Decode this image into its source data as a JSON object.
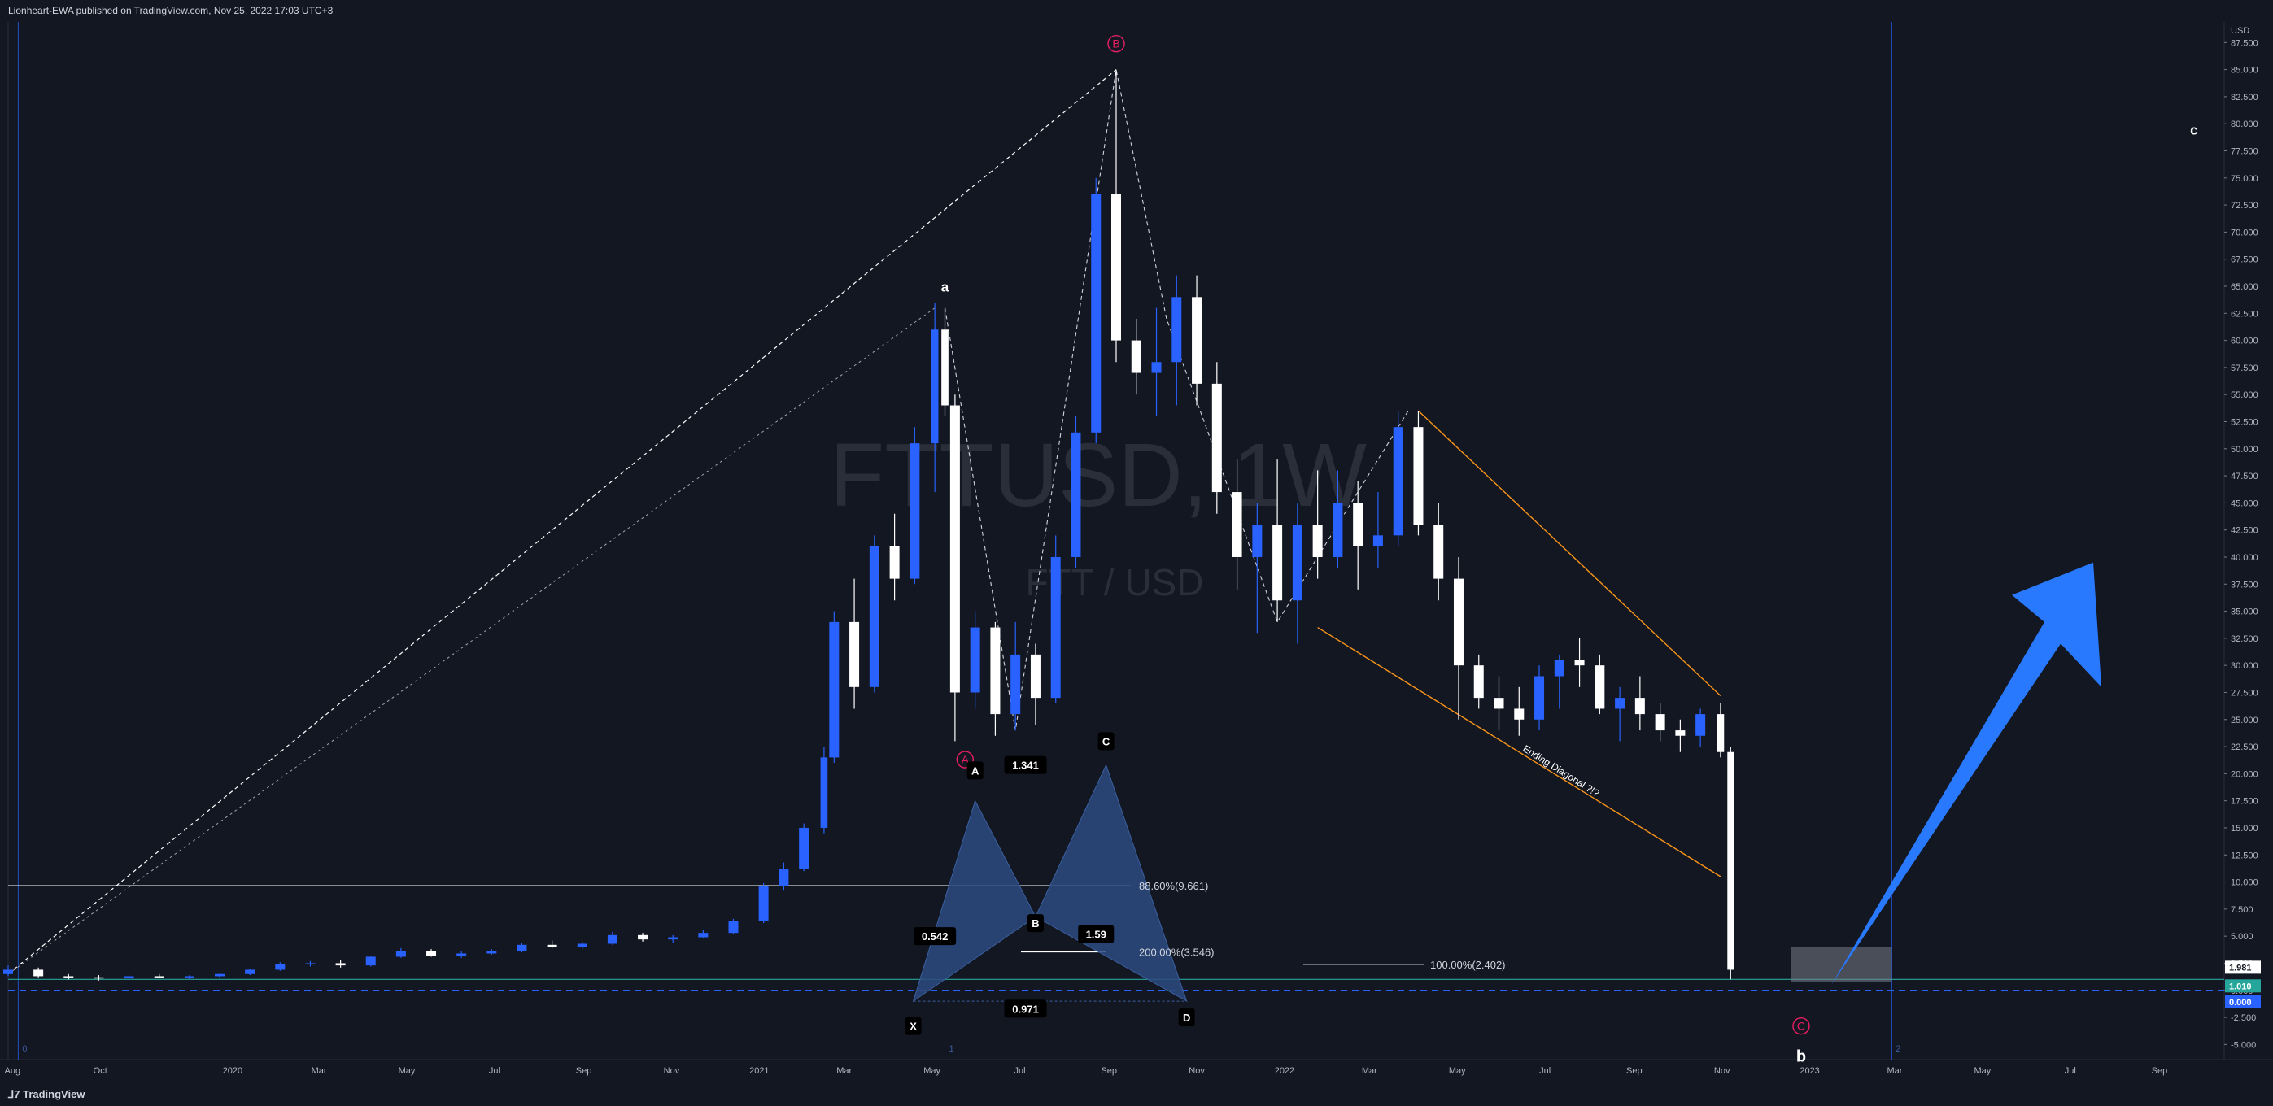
{
  "header": {
    "published": "Lionheart-EWA published on TradingView.com, Nov 25, 2022 17:03 UTC+3"
  },
  "footer": {
    "brand": "TradingView"
  },
  "watermark": {
    "symbol": "FTTUSD, 1W",
    "pair": "FTT / USD"
  },
  "price_axis": {
    "currency": "USD",
    "ticks": [
      "87.500",
      "85.000",
      "82.500",
      "80.000",
      "77.500",
      "75.000",
      "72.500",
      "70.000",
      "67.500",
      "65.000",
      "62.500",
      "60.000",
      "57.500",
      "55.000",
      "52.500",
      "50.000",
      "47.500",
      "45.000",
      "42.500",
      "40.000",
      "37.500",
      "35.000",
      "32.500",
      "30.000",
      "27.500",
      "25.000",
      "22.500",
      "20.000",
      "17.500",
      "15.000",
      "12.500",
      "10.000",
      "7.500",
      "5.000",
      "2.500",
      "0.000",
      "-2.500",
      "-5.000"
    ],
    "tags": [
      {
        "text": "1.981",
        "bg": "#ffffff",
        "fg": "#131722",
        "price": 1.981
      },
      {
        "text": "1.010",
        "bg": "#26a69a",
        "fg": "#ffffff",
        "price": 1.01
      },
      {
        "text": "0.000",
        "bg": "#2962ff",
        "fg": "#ffffff",
        "price": 0.0
      }
    ]
  },
  "time_axis": {
    "labels": [
      "Aug",
      "Oct",
      "2020",
      "Mar",
      "May",
      "Jul",
      "Sep",
      "Nov",
      "2021",
      "Mar",
      "May",
      "Jul",
      "Sep",
      "Nov",
      "2022",
      "Mar",
      "May",
      "Jul",
      "Sep",
      "Nov",
      "2023",
      "Mar",
      "May",
      "Jul",
      "Sep"
    ],
    "session_marks": [
      "0",
      "1",
      "2"
    ]
  },
  "annotations": {
    "wave_labels": [
      "a",
      "b",
      "c"
    ],
    "circled_labels": [
      "B",
      "A",
      "C"
    ],
    "harmonic_points": [
      "X",
      "A",
      "B",
      "C",
      "D"
    ],
    "harmonic_ratios": [
      "1.341",
      "0.542",
      "0.971",
      "1.59"
    ],
    "fib_levels": [
      "88.60%(9.661)",
      "200.00%(3.546)",
      "100.00%(2.402)"
    ],
    "diagonal_note": "Ending Diagonal ?!?"
  },
  "colors": {
    "background": "#131722",
    "bull_candle": "#2962ff",
    "bear_candle": "#ffffff",
    "harmonic_fill": "#2d4a7f",
    "diagonal_line": "#f7931a",
    "arrow": "#2979ff",
    "circled": "#e91e63"
  },
  "chart_data": {
    "type": "candlestick",
    "title": "",
    "xlabel": "",
    "ylabel": "",
    "ylim": [
      -6.4,
      89.4
    ],
    "x_range": [
      "2019-07-29",
      "2023-10-16"
    ],
    "y_ticks": [
      87.5,
      85,
      82.5,
      80,
      77.5,
      75,
      72.5,
      70,
      67.5,
      65,
      62.5,
      60,
      57.5,
      55,
      52.5,
      50,
      47.5,
      45,
      42.5,
      40,
      37.5,
      35,
      32.5,
      30,
      27.5,
      25,
      22.5,
      20,
      17.5,
      15,
      12.5,
      10,
      7.5,
      5,
      2.5,
      0,
      -2.5,
      -5
    ],
    "x_ticks": [
      "2019-08-01",
      "2019-10-01",
      "2020-01-01",
      "2020-03-01",
      "2020-05-01",
      "2020-07-01",
      "2020-09-01",
      "2020-11-01",
      "2021-01-01",
      "2021-03-01",
      "2021-05-01",
      "2021-07-01",
      "2021-09-01",
      "2021-11-01",
      "2022-01-01",
      "2022-03-01",
      "2022-05-01",
      "2022-07-01",
      "2022-09-01",
      "2022-11-01",
      "2023-01-01",
      "2023-03-01",
      "2023-05-01",
      "2023-07-01",
      "2023-09-01"
    ],
    "series": [
      {
        "kind": "ohlc",
        "points": [
          [
            "2019-07-29",
            1.5,
            2.3,
            1.3,
            1.9
          ],
          [
            "2019-08-19",
            1.9,
            2.1,
            1.2,
            1.3
          ],
          [
            "2019-09-09",
            1.3,
            1.5,
            1.0,
            1.2
          ],
          [
            "2019-09-30",
            1.2,
            1.4,
            0.9,
            1.1
          ],
          [
            "2019-10-21",
            1.1,
            1.4,
            1.0,
            1.3
          ],
          [
            "2019-11-11",
            1.3,
            1.5,
            1.1,
            1.2
          ],
          [
            "2019-12-02",
            1.2,
            1.4,
            1.0,
            1.3
          ],
          [
            "2019-12-23",
            1.3,
            1.6,
            1.2,
            1.5
          ],
          [
            "2020-01-13",
            1.5,
            2.0,
            1.4,
            1.9
          ],
          [
            "2020-02-03",
            1.9,
            2.6,
            1.8,
            2.4
          ],
          [
            "2020-02-24",
            2.4,
            2.7,
            2.2,
            2.5
          ],
          [
            "2020-03-16",
            2.5,
            2.8,
            2.1,
            2.3
          ],
          [
            "2020-04-06",
            2.3,
            3.2,
            2.2,
            3.1
          ],
          [
            "2020-04-27",
            3.1,
            3.9,
            3.0,
            3.6
          ],
          [
            "2020-05-18",
            3.6,
            3.8,
            3.1,
            3.2
          ],
          [
            "2020-06-08",
            3.2,
            3.6,
            3.0,
            3.4
          ],
          [
            "2020-06-29",
            3.4,
            3.8,
            3.3,
            3.6
          ],
          [
            "2020-07-20",
            3.6,
            4.4,
            3.5,
            4.2
          ],
          [
            "2020-08-10",
            4.2,
            4.6,
            3.9,
            4.0
          ],
          [
            "2020-08-31",
            4.0,
            4.5,
            3.8,
            4.3
          ],
          [
            "2020-09-21",
            4.3,
            5.4,
            4.2,
            5.1
          ],
          [
            "2020-10-12",
            5.1,
            5.3,
            4.5,
            4.7
          ],
          [
            "2020-11-02",
            4.7,
            5.1,
            4.4,
            4.9
          ],
          [
            "2020-11-23",
            4.9,
            5.6,
            4.8,
            5.3
          ],
          [
            "2020-12-14",
            5.3,
            6.6,
            5.2,
            6.4
          ],
          [
            "2021-01-04",
            6.4,
            9.9,
            6.2,
            9.6
          ],
          [
            "2021-01-18",
            9.6,
            11.8,
            9.2,
            11.2
          ],
          [
            "2021-02-01",
            11.2,
            15.4,
            11.0,
            15.0
          ],
          [
            "2021-02-15",
            15.0,
            22.5,
            14.5,
            21.5
          ],
          [
            "2021-02-22",
            21.5,
            35.0,
            21.0,
            34.0
          ],
          [
            "2021-03-08",
            34.0,
            38.0,
            26.0,
            28.0
          ],
          [
            "2021-03-22",
            28.0,
            42.0,
            27.5,
            41.0
          ],
          [
            "2021-04-05",
            41.0,
            44.0,
            36.0,
            38.0
          ],
          [
            "2021-04-19",
            38.0,
            52.0,
            37.5,
            50.5
          ],
          [
            "2021-05-03",
            50.5,
            63.5,
            46.0,
            61.0
          ],
          [
            "2021-05-10",
            61.0,
            63.0,
            53.0,
            54.0
          ],
          [
            "2021-05-17",
            54.0,
            55.0,
            23.0,
            27.5
          ],
          [
            "2021-05-31",
            27.5,
            35.0,
            26.0,
            33.5
          ],
          [
            "2021-06-14",
            33.5,
            34.0,
            23.5,
            25.5
          ],
          [
            "2021-06-28",
            25.5,
            34.0,
            24.0,
            31.0
          ],
          [
            "2021-07-12",
            31.0,
            32.0,
            24.5,
            27.0
          ],
          [
            "2021-07-26",
            27.0,
            42.0,
            26.5,
            40.0
          ],
          [
            "2021-08-09",
            40.0,
            53.0,
            39.0,
            51.5
          ],
          [
            "2021-08-23",
            51.5,
            75.0,
            50.5,
            73.5
          ],
          [
            "2021-09-06",
            73.5,
            85.0,
            58.0,
            60.0
          ],
          [
            "2021-09-20",
            60.0,
            62.0,
            55.0,
            57.0
          ],
          [
            "2021-10-04",
            57.0,
            63.0,
            53.0,
            58.0
          ],
          [
            "2021-10-18",
            58.0,
            66.0,
            54.0,
            64.0
          ],
          [
            "2021-11-01",
            64.0,
            66.0,
            54.0,
            56.0
          ],
          [
            "2021-11-15",
            56.0,
            58.0,
            44.0,
            46.0
          ],
          [
            "2021-11-29",
            46.0,
            49.0,
            37.0,
            40.0
          ],
          [
            "2021-12-13",
            40.0,
            45.0,
            33.0,
            43.0
          ],
          [
            "2021-12-27",
            43.0,
            49.0,
            34.0,
            36.0
          ],
          [
            "2022-01-10",
            36.0,
            45.0,
            32.0,
            43.0
          ],
          [
            "2022-01-24",
            43.0,
            48.0,
            38.0,
            40.0
          ],
          [
            "2022-02-07",
            40.0,
            48.0,
            39.0,
            45.0
          ],
          [
            "2022-02-21",
            45.0,
            47.0,
            37.0,
            41.0
          ],
          [
            "2022-03-07",
            41.0,
            46.0,
            39.0,
            42.0
          ],
          [
            "2022-03-21",
            42.0,
            53.5,
            41.0,
            52.0
          ],
          [
            "2022-04-04",
            52.0,
            53.5,
            42.0,
            43.0
          ],
          [
            "2022-04-18",
            43.0,
            45.0,
            36.0,
            38.0
          ],
          [
            "2022-05-02",
            38.0,
            40.0,
            25.0,
            30.0
          ],
          [
            "2022-05-16",
            30.0,
            31.0,
            26.0,
            27.0
          ],
          [
            "2022-05-30",
            27.0,
            29.0,
            24.0,
            26.0
          ],
          [
            "2022-06-13",
            26.0,
            28.0,
            23.5,
            25.0
          ],
          [
            "2022-06-27",
            25.0,
            30.0,
            24.0,
            29.0
          ],
          [
            "2022-07-11",
            29.0,
            31.0,
            26.0,
            30.5
          ],
          [
            "2022-07-25",
            30.5,
            32.5,
            28.0,
            30.0
          ],
          [
            "2022-08-08",
            30.0,
            31.0,
            25.5,
            26.0
          ],
          [
            "2022-08-22",
            26.0,
            28.0,
            23.0,
            27.0
          ],
          [
            "2022-09-05",
            27.0,
            29.0,
            24.0,
            25.5
          ],
          [
            "2022-09-19",
            25.5,
            26.5,
            23.0,
            24.0
          ],
          [
            "2022-10-03",
            24.0,
            25.0,
            22.0,
            23.5
          ],
          [
            "2022-10-17",
            23.5,
            26.0,
            22.5,
            25.5
          ],
          [
            "2022-10-31",
            25.5,
            26.5,
            21.5,
            22.0
          ],
          [
            "2022-11-07",
            22.0,
            22.5,
            1.0,
            1.9
          ]
        ]
      }
    ]
  }
}
